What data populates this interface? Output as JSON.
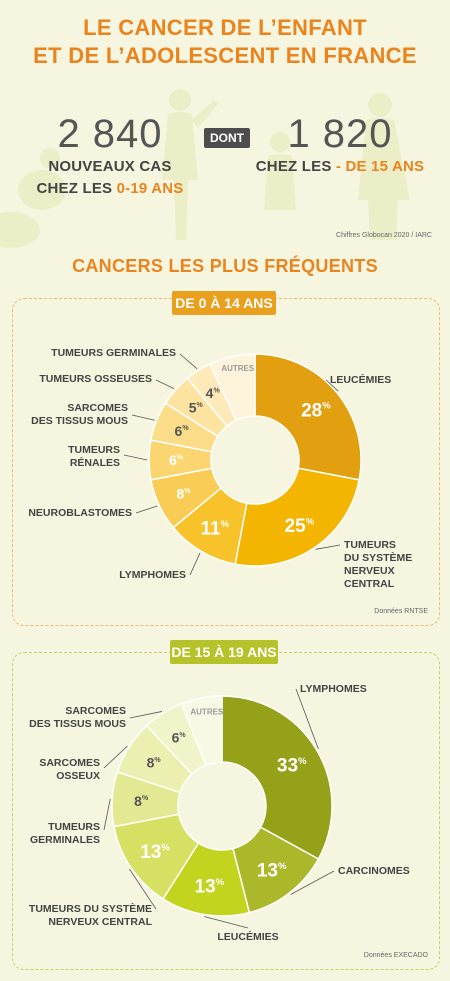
{
  "header": {
    "title_line1": "LE CANCER DE L’ENFANT",
    "title_line2": "ET DE L’ADOLESCENT EN FRANCE"
  },
  "stats": {
    "left": {
      "number": "2 840",
      "line1": "NOUVEAUX CAS",
      "line2_prefix": "CHEZ LES ",
      "line2_highlight": "0-19 ANS"
    },
    "connector": "DONT",
    "right": {
      "number": "1 820",
      "line1_prefix": "CHEZ LES ",
      "line1_highlight": "- DE 15 ANS"
    },
    "source": "Chiffres Globocan 2020 / IARC"
  },
  "section_title": "CANCERS LES PLUS FRÉQUENTS",
  "colors": {
    "accent": "#e9841e",
    "panel1_border": "#f0b870",
    "panel2_border": "#c8d25a",
    "badge1": "#e9a01e",
    "badge2": "#b5c229"
  },
  "chart_data": [
    {
      "type": "pie",
      "donut": true,
      "title": "DE 0 À 14 ANS",
      "source": "Données RNTSE",
      "slices": [
        {
          "label": "LEUCÉMIES",
          "value": 28,
          "value_label": "28",
          "color": "#e2a010",
          "text_color": "#ffffff"
        },
        {
          "label": "TUMEURS DU SYSTÈME NERVEUX CENTRAL",
          "value": 25,
          "value_label": "25",
          "color": "#f3b500",
          "text_color": "#ffffff"
        },
        {
          "label": "LYMPHOMES",
          "value": 11,
          "value_label": "11",
          "color": "#f7c22a",
          "text_color": "#ffffff"
        },
        {
          "label": "NEUROBLASTOMES",
          "value": 8,
          "value_label": "8",
          "color": "#f9cd55",
          "text_color": "#ffffff"
        },
        {
          "label": "TUMEURS RÉNALES",
          "value": 6,
          "value_label": "6",
          "color": "#fad570",
          "text_color": "#ffffff"
        },
        {
          "label": "SARCOMES DES TISSUS MOUS",
          "value": 6,
          "value_label": "6",
          "color": "#fbdc88",
          "text_color": "#555555"
        },
        {
          "label": "TUMEURS OSSEUSES",
          "value": 5,
          "value_label": "5",
          "color": "#fce3a0",
          "text_color": "#555555"
        },
        {
          "label": "TUMEURS GERMINALES",
          "value": 4,
          "value_label": "4",
          "color": "#fdeab8",
          "text_color": "#555555"
        },
        {
          "label": "AUTRES",
          "value": 7,
          "value_label": "AUTRES",
          "color": "#fef4dc",
          "text_color": "#999999"
        }
      ]
    },
    {
      "type": "pie",
      "donut": true,
      "title": "DE 15 À 19 ANS",
      "source": "Données EXECADO",
      "slices": [
        {
          "label": "LYMPHOMES",
          "value": 33,
          "value_label": "33",
          "color": "#96a11a",
          "text_color": "#ffffff"
        },
        {
          "label": "CARCINOMES",
          "value": 13,
          "value_label": "13",
          "color": "#aab82a",
          "text_color": "#ffffff"
        },
        {
          "label": "LEUCÉMIES",
          "value": 13,
          "value_label": "13",
          "color": "#c3d41f",
          "text_color": "#ffffff"
        },
        {
          "label": "TUMEURS DU SYSTÈME NERVEUX CENTRAL",
          "value": 13,
          "value_label": "13",
          "color": "#d6e063",
          "text_color": "#ffffff"
        },
        {
          "label": "TUMEURS GERMINALES",
          "value": 8,
          "value_label": "8",
          "color": "#e3e992",
          "text_color": "#555555"
        },
        {
          "label": "SARCOMES OSSEUX",
          "value": 8,
          "value_label": "8",
          "color": "#ebefb0",
          "text_color": "#555555"
        },
        {
          "label": "SARCOMES DES TISSUS MOUS",
          "value": 6,
          "value_label": "6",
          "color": "#f1f3c8",
          "text_color": "#555555"
        },
        {
          "label": "AUTRES",
          "value": 6,
          "value_label": "AUTRES",
          "color": "#f8f9e4",
          "text_color": "#999999"
        }
      ]
    }
  ]
}
